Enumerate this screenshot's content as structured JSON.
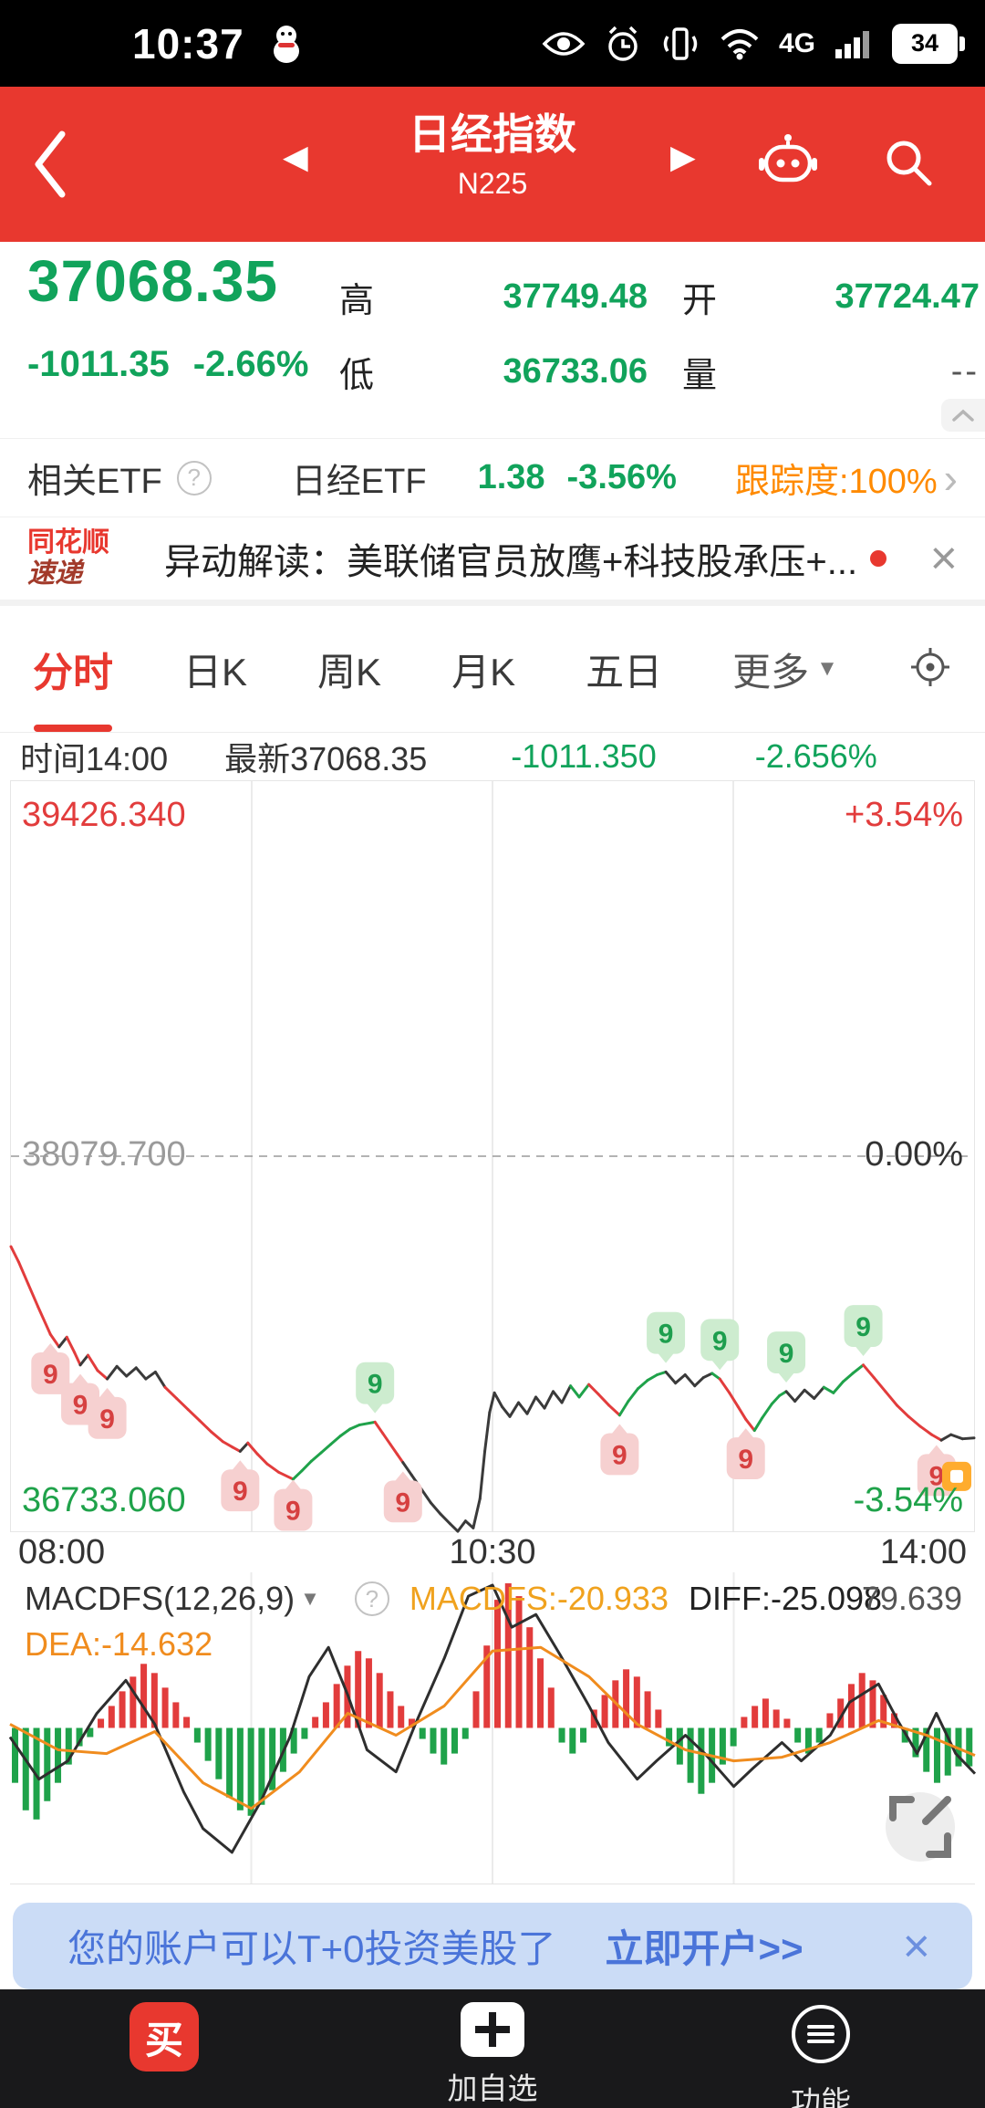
{
  "colors": {
    "accent_red": "#e8382f",
    "down_green": "#11a35b",
    "orange": "#ff8a00",
    "chart_red": "#e23c3c",
    "chart_green": "#1fa24a",
    "banner_blue": "#4a74d9"
  },
  "icons": {
    "close": "×",
    "dropdown": "▼",
    "prev": "◀",
    "next": "▶",
    "chevron_right": "›",
    "question": "?"
  },
  "status_bar": {
    "time": "10:37",
    "network": "4G",
    "battery": "34"
  },
  "header": {
    "title": "日经指数",
    "subtitle": "N225"
  },
  "quote": {
    "price": "37068.35",
    "change": "-1011.35",
    "change_pct": "-2.66%",
    "high_label": "高",
    "high": "37749.48",
    "low_label": "低",
    "low": "36733.06",
    "open_label": "开",
    "open": "37724.47",
    "volume_label": "量",
    "volume": "--"
  },
  "etf": {
    "label": "相关ETF",
    "name": "日经ETF",
    "price": "1.38",
    "pct": "-3.56%",
    "tracking": "跟踪度:100%"
  },
  "news": {
    "brand_top": "同花顺",
    "brand_bottom": "速递",
    "headline": "异动解读：美联储官员放鹰+科技股承压+..."
  },
  "tabs": {
    "items": [
      "分时",
      "日K",
      "周K",
      "月K",
      "五日"
    ],
    "more": "更多"
  },
  "info_bar": {
    "time": "时间14:00",
    "latest": "最新37068.35",
    "change": "-1011.350",
    "pct": "-2.656%"
  },
  "chart_labels": {
    "top_price": "39426.340",
    "top_pct": "+3.54%",
    "mid_price": "38079.700",
    "mid_pct": "0.00%",
    "bottom_price": "36733.060",
    "bottom_pct": "-3.54%"
  },
  "time_axis": {
    "start": "08:00",
    "mid": "10:30",
    "end": "14:00"
  },
  "macd": {
    "indicator": "MACDFS(12,26,9)",
    "macdfs": "MACDFS:-20.933",
    "diff": "DIFF:-25.098",
    "dea": "DEA:-14.632",
    "max": "79.639"
  },
  "banner": {
    "text": "您的账户可以T+0投资美股了",
    "cta": "立即开户>>"
  },
  "bottom_nav": {
    "buy": "买",
    "add": "加自选",
    "features": "功能"
  },
  "chart_data": {
    "type": "line",
    "title": "N225 分时",
    "x_axis": [
      "08:00",
      "10:30",
      "14:00"
    ],
    "y_range": [
      36733.06,
      39426.34
    ],
    "mid_value": 38079.7,
    "pct_range": [
      "-3.54%",
      "+3.54%"
    ],
    "intraday": {
      "points": [
        [
          0.0,
          37755,
          "k"
        ],
        [
          0.008,
          37700,
          "r"
        ],
        [
          0.018,
          37620,
          "r"
        ],
        [
          0.028,
          37540,
          "r"
        ],
        [
          0.041,
          37440,
          "r"
        ],
        [
          0.05,
          37395,
          "r"
        ],
        [
          0.058,
          37430,
          "k"
        ],
        [
          0.066,
          37375,
          "r"
        ],
        [
          0.072,
          37330,
          "r"
        ],
        [
          0.08,
          37365,
          "k"
        ],
        [
          0.09,
          37310,
          "r"
        ],
        [
          0.1,
          37280,
          "r"
        ],
        [
          0.11,
          37325,
          "k"
        ],
        [
          0.12,
          37290,
          "k"
        ],
        [
          0.13,
          37320,
          "k"
        ],
        [
          0.14,
          37280,
          "k"
        ],
        [
          0.15,
          37305,
          "k"
        ],
        [
          0.16,
          37250,
          "k"
        ],
        [
          0.172,
          37210,
          "r"
        ],
        [
          0.184,
          37170,
          "r"
        ],
        [
          0.196,
          37130,
          "r"
        ],
        [
          0.208,
          37090,
          "r"
        ],
        [
          0.22,
          37055,
          "r"
        ],
        [
          0.23,
          37035,
          "r"
        ],
        [
          0.238,
          37020,
          "r"
        ],
        [
          0.246,
          37050,
          "k"
        ],
        [
          0.256,
          37010,
          "r"
        ],
        [
          0.266,
          36975,
          "r"
        ],
        [
          0.278,
          36945,
          "r"
        ],
        [
          0.293,
          36920,
          "r"
        ],
        [
          0.302,
          36950,
          "g"
        ],
        [
          0.312,
          36985,
          "g"
        ],
        [
          0.322,
          37015,
          "g"
        ],
        [
          0.332,
          37045,
          "g"
        ],
        [
          0.342,
          37075,
          "g"
        ],
        [
          0.352,
          37100,
          "g"
        ],
        [
          0.362,
          37115,
          "g"
        ],
        [
          0.378,
          37125,
          "g"
        ],
        [
          0.386,
          37085,
          "r"
        ],
        [
          0.394,
          37045,
          "r"
        ],
        [
          0.401,
          37010,
          "r"
        ],
        [
          0.407,
          36980,
          "r"
        ],
        [
          0.416,
          36935,
          "k"
        ],
        [
          0.426,
          36885,
          "k"
        ],
        [
          0.436,
          36835,
          "k"
        ],
        [
          0.446,
          36795,
          "k"
        ],
        [
          0.456,
          36760,
          "k"
        ],
        [
          0.464,
          36733,
          "k"
        ],
        [
          0.472,
          36770,
          "k"
        ],
        [
          0.48,
          36745,
          "k"
        ],
        [
          0.487,
          36850,
          "k"
        ],
        [
          0.492,
          37020,
          "k"
        ],
        [
          0.497,
          37160,
          "k"
        ],
        [
          0.502,
          37230,
          "k"
        ],
        [
          0.51,
          37180,
          "k"
        ],
        [
          0.518,
          37145,
          "k"
        ],
        [
          0.527,
          37195,
          "k"
        ],
        [
          0.536,
          37155,
          "k"
        ],
        [
          0.545,
          37215,
          "k"
        ],
        [
          0.554,
          37175,
          "k"
        ],
        [
          0.563,
          37235,
          "k"
        ],
        [
          0.572,
          37195,
          "k"
        ],
        [
          0.581,
          37255,
          "k"
        ],
        [
          0.59,
          37215,
          "g"
        ],
        [
          0.6,
          37260,
          "g"
        ],
        [
          0.61,
          37225,
          "r"
        ],
        [
          0.621,
          37185,
          "r"
        ],
        [
          0.632,
          37150,
          "r"
        ],
        [
          0.641,
          37200,
          "g"
        ],
        [
          0.651,
          37245,
          "g"
        ],
        [
          0.661,
          37275,
          "g"
        ],
        [
          0.671,
          37295,
          "g"
        ],
        [
          0.68,
          37305,
          "g"
        ],
        [
          0.69,
          37265,
          "k"
        ],
        [
          0.7,
          37295,
          "k"
        ],
        [
          0.71,
          37255,
          "k"
        ],
        [
          0.719,
          37285,
          "k"
        ],
        [
          0.728,
          37300,
          "k"
        ],
        [
          0.736,
          37280,
          "g"
        ],
        [
          0.746,
          37230,
          "r"
        ],
        [
          0.755,
          37180,
          "r"
        ],
        [
          0.763,
          37135,
          "r"
        ],
        [
          0.772,
          37095,
          "r"
        ],
        [
          0.78,
          37140,
          "g"
        ],
        [
          0.79,
          37190,
          "g"
        ],
        [
          0.798,
          37220,
          "g"
        ],
        [
          0.805,
          37235,
          "g"
        ],
        [
          0.814,
          37200,
          "k"
        ],
        [
          0.824,
          37240,
          "k"
        ],
        [
          0.834,
          37210,
          "k"
        ],
        [
          0.844,
          37250,
          "k"
        ],
        [
          0.854,
          37230,
          "g"
        ],
        [
          0.864,
          37270,
          "g"
        ],
        [
          0.874,
          37300,
          "g"
        ],
        [
          0.885,
          37330,
          "g"
        ],
        [
          0.896,
          37285,
          "r"
        ],
        [
          0.908,
          37235,
          "r"
        ],
        [
          0.92,
          37185,
          "r"
        ],
        [
          0.932,
          37145,
          "r"
        ],
        [
          0.944,
          37110,
          "r"
        ],
        [
          0.956,
          37080,
          "r"
        ],
        [
          0.966,
          37060,
          "r"
        ],
        [
          0.976,
          37080,
          "k"
        ],
        [
          0.988,
          37065,
          "k"
        ],
        [
          1.0,
          37068,
          "k"
        ]
      ],
      "markers": [
        {
          "x": 0.041,
          "v": 37300,
          "t": "r"
        },
        {
          "x": 0.072,
          "v": 37190,
          "t": "r"
        },
        {
          "x": 0.1,
          "v": 37140,
          "t": "r"
        },
        {
          "x": 0.238,
          "v": 36880,
          "t": "r"
        },
        {
          "x": 0.293,
          "v": 36810,
          "t": "r"
        },
        {
          "x": 0.407,
          "v": 36840,
          "t": "r"
        },
        {
          "x": 0.632,
          "v": 37010,
          "t": "r"
        },
        {
          "x": 0.763,
          "v": 36995,
          "t": "r"
        },
        {
          "x": 0.961,
          "v": 36935,
          "t": "r"
        },
        {
          "x": 0.378,
          "v": 37265,
          "t": "g"
        },
        {
          "x": 0.68,
          "v": 37445,
          "t": "g"
        },
        {
          "x": 0.736,
          "v": 37420,
          "t": "g"
        },
        {
          "x": 0.805,
          "v": 37375,
          "t": "g"
        },
        {
          "x": 0.885,
          "v": 37470,
          "t": "g"
        }
      ],
      "flag": {
        "x": 0.982,
        "v": 36930
      }
    },
    "macd": {
      "range": [
        -85,
        85
      ],
      "max_label": 79.639,
      "bars": [
        -30,
        -45,
        -50,
        -40,
        -30,
        -20,
        -10,
        -5,
        5,
        12,
        20,
        28,
        35,
        30,
        22,
        14,
        6,
        -8,
        -18,
        -28,
        -38,
        -45,
        -48,
        -42,
        -34,
        -24,
        -14,
        -6,
        6,
        14,
        24,
        34,
        42,
        38,
        30,
        20,
        12,
        5,
        -6,
        -14,
        -20,
        -14,
        -6,
        20,
        45,
        70,
        79,
        72,
        55,
        38,
        22,
        -8,
        -14,
        -8,
        10,
        18,
        26,
        32,
        28,
        20,
        10,
        -10,
        -20,
        -30,
        -36,
        -30,
        -20,
        -10,
        6,
        12,
        16,
        10,
        5,
        -8,
        -14,
        -8,
        8,
        16,
        24,
        30,
        26,
        18,
        8,
        -8,
        -16,
        -24,
        -30,
        -26,
        -21,
        -21
      ],
      "diff": [
        [
          0,
          -5
        ],
        [
          0.03,
          -28
        ],
        [
          0.06,
          -18
        ],
        [
          0.09,
          8
        ],
        [
          0.12,
          26
        ],
        [
          0.15,
          2
        ],
        [
          0.18,
          -35
        ],
        [
          0.2,
          -55
        ],
        [
          0.23,
          -68
        ],
        [
          0.26,
          -40
        ],
        [
          0.29,
          -5
        ],
        [
          0.31,
          28
        ],
        [
          0.33,
          44
        ],
        [
          0.35,
          18
        ],
        [
          0.37,
          -12
        ],
        [
          0.4,
          -24
        ],
        [
          0.42,
          2
        ],
        [
          0.45,
          38
        ],
        [
          0.475,
          72
        ],
        [
          0.5,
          78
        ],
        [
          0.52,
          55
        ],
        [
          0.545,
          62
        ],
        [
          0.57,
          40
        ],
        [
          0.6,
          12
        ],
        [
          0.62,
          -8
        ],
        [
          0.65,
          -28
        ],
        [
          0.67,
          -18
        ],
        [
          0.7,
          -4
        ],
        [
          0.72,
          -14
        ],
        [
          0.75,
          -32
        ],
        [
          0.77,
          -22
        ],
        [
          0.8,
          -8
        ],
        [
          0.82,
          -18
        ],
        [
          0.85,
          -4
        ],
        [
          0.87,
          14
        ],
        [
          0.9,
          24
        ],
        [
          0.92,
          4
        ],
        [
          0.94,
          -14
        ],
        [
          0.96,
          8
        ],
        [
          0.98,
          -14
        ],
        [
          1.0,
          -25
        ]
      ],
      "dea": [
        [
          0,
          2
        ],
        [
          0.05,
          -12
        ],
        [
          0.1,
          -14
        ],
        [
          0.15,
          -2
        ],
        [
          0.2,
          -30
        ],
        [
          0.25,
          -44
        ],
        [
          0.3,
          -24
        ],
        [
          0.35,
          8
        ],
        [
          0.4,
          -4
        ],
        [
          0.45,
          12
        ],
        [
          0.5,
          42
        ],
        [
          0.55,
          44
        ],
        [
          0.6,
          28
        ],
        [
          0.65,
          2
        ],
        [
          0.7,
          -12
        ],
        [
          0.75,
          -18
        ],
        [
          0.8,
          -16
        ],
        [
          0.85,
          -8
        ],
        [
          0.9,
          4
        ],
        [
          0.95,
          -4
        ],
        [
          1.0,
          -15
        ]
      ]
    }
  }
}
